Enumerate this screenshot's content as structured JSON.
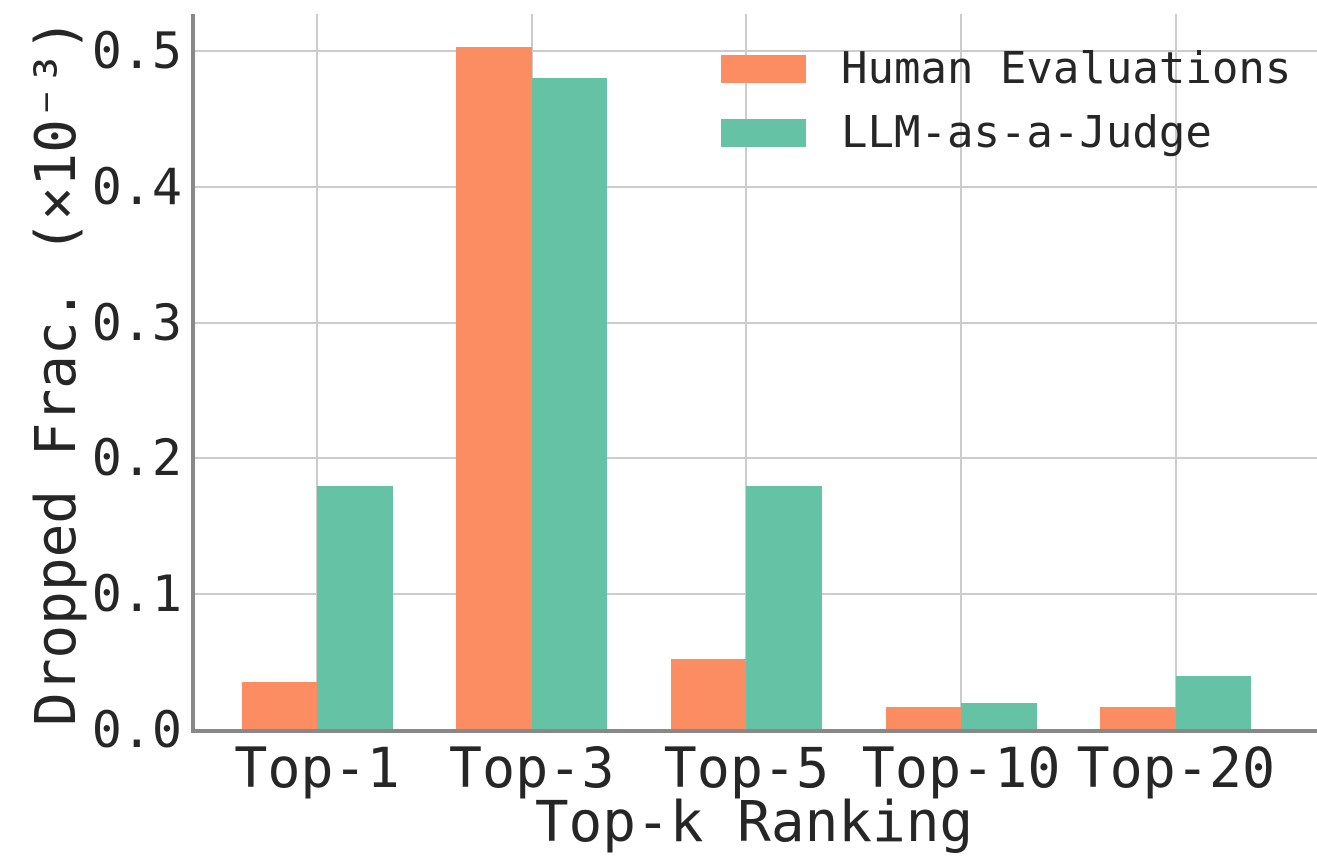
{
  "chart_data": {
    "type": "bar",
    "title": "",
    "xlabel": "Top-k Ranking",
    "ylabel": "Dropped Frac. (×10⁻³)",
    "categories": [
      "Top-1",
      "Top-3",
      "Top-5",
      "Top-10",
      "Top-20"
    ],
    "series": [
      {
        "name": "Human Evaluations",
        "color": "#fc8d62",
        "values": [
          0.035,
          0.503,
          0.052,
          0.017,
          0.017
        ]
      },
      {
        "name": "LLM-as-a-Judge",
        "color": "#66c2a5",
        "values": [
          0.18,
          0.48,
          0.18,
          0.02,
          0.04
        ]
      }
    ],
    "yticks": [
      0.0,
      0.1,
      0.2,
      0.3,
      0.4,
      0.5
    ],
    "ytick_labels": [
      "0.0",
      "0.1",
      "0.2",
      "0.3",
      "0.4",
      "0.5"
    ],
    "ylim": [
      0,
      0.527
    ],
    "grid": true,
    "legend_position": "upper right"
  },
  "colors": {
    "background": "#ffffff",
    "grid": "#cccccc",
    "spine": "#888888",
    "text": "#262626"
  }
}
